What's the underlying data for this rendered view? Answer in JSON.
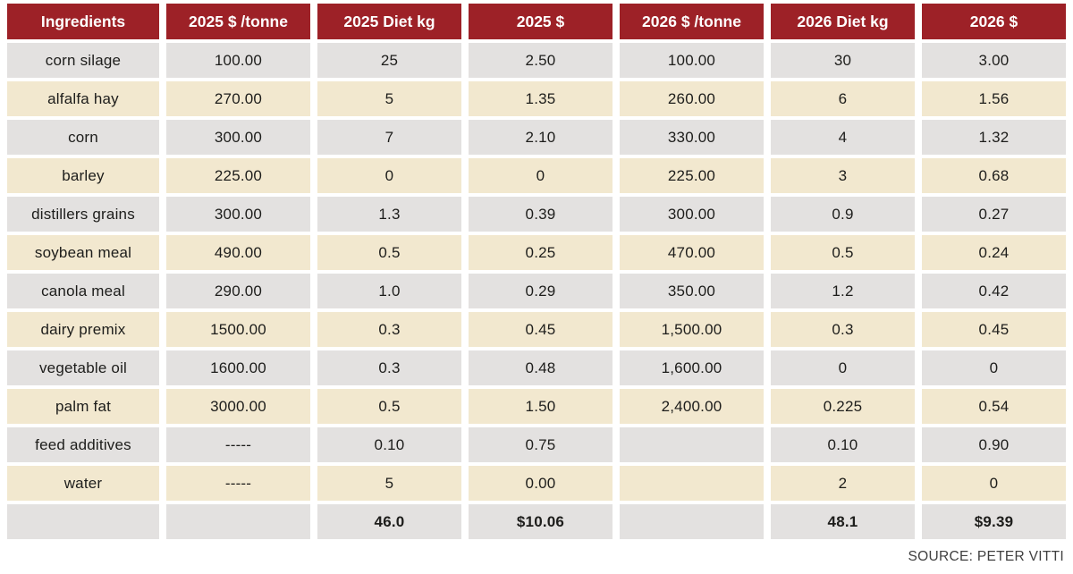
{
  "chart_data": {
    "type": "table",
    "columns": [
      "Ingredients",
      "2025 $ /tonne",
      "2025 Diet kg",
      "2025 $",
      "2026 $ /tonne",
      "2026 Diet kg",
      "2026 $"
    ],
    "rows": [
      [
        "corn silage",
        "100.00",
        "25",
        "2.50",
        "100.00",
        "30",
        "3.00"
      ],
      [
        "alfalfa hay",
        "270.00",
        "5",
        "1.35",
        "260.00",
        "6",
        "1.56"
      ],
      [
        "corn",
        "300.00",
        "7",
        "2.10",
        "330.00",
        "4",
        "1.32"
      ],
      [
        "barley",
        "225.00",
        "0",
        "0",
        "225.00",
        "3",
        "0.68"
      ],
      [
        "distillers grains",
        "300.00",
        "1.3",
        "0.39",
        "300.00",
        "0.9",
        "0.27"
      ],
      [
        "soybean meal",
        "490.00",
        "0.5",
        "0.25",
        "470.00",
        "0.5",
        "0.24"
      ],
      [
        "canola meal",
        "290.00",
        "1.0",
        "0.29",
        "350.00",
        "1.2",
        "0.42"
      ],
      [
        "dairy premix",
        "1500.00",
        "0.3",
        "0.45",
        "1,500.00",
        "0.3",
        "0.45"
      ],
      [
        "vegetable oil",
        "1600.00",
        "0.3",
        "0.48",
        "1,600.00",
        "0",
        "0"
      ],
      [
        "palm fat",
        "3000.00",
        "0.5",
        "1.50",
        "2,400.00",
        "0.225",
        "0.54"
      ],
      [
        "feed additives",
        "-----",
        "0.10",
        "0.75",
        "",
        "0.10",
        "0.90"
      ],
      [
        "water",
        "-----",
        "5",
        "0.00",
        "",
        "2",
        "0"
      ]
    ],
    "totals_row": [
      "",
      "",
      "46.0",
      "$10.06",
      "",
      "48.1",
      "$9.39"
    ],
    "source": "SOURCE: PETER VITTI",
    "layout_hints": {
      "row_striping": [
        "gray",
        "cream"
      ],
      "totals_bold": true,
      "header_style": "dark-red with white bold text"
    }
  },
  "colors": {
    "header_bg": "#9d2127",
    "header_text": "#ffffff",
    "row_gray": "#e3e1e0",
    "row_cream": "#f2e8cf",
    "cell_text": "#1d1d1b",
    "source_text": "#3f3f3f"
  }
}
